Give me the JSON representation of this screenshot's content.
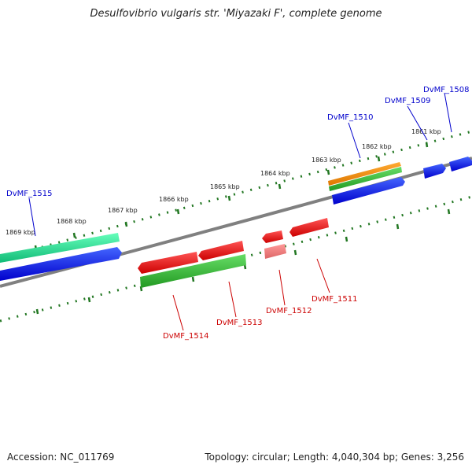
{
  "title": "Desulfovibrio vulgaris str. 'Miyazaki F', complete genome",
  "footer": {
    "accession": "Accession: NC_011769",
    "summary": "Topology: circular; Length: 4,040,304 bp; Genes: 3,256"
  },
  "kbp_labels": [
    "1869 kbp",
    "1868 kbp",
    "1867 kbp",
    "1866 kbp",
    "1865 kbp",
    "1864 kbp",
    "1863 kbp",
    "1862 kbp",
    "1861 kbp"
  ],
  "gene_labels": {
    "forward": [
      "DvMF_1515",
      "DvMF_1510",
      "DvMF_1509",
      "DvMF_1508"
    ],
    "reverse": [
      "DvMF_1514",
      "DvMF_1513",
      "DvMF_1512",
      "DvMF_1511"
    ]
  },
  "colors": {
    "forward_label": "#0000cc",
    "reverse_label": "#cc0000",
    "cds_forward": "#0000ee",
    "cds_reverse": "#ee0000",
    "gene_forward": "#22cc88",
    "gene_reverse": "#33bb33",
    "rna": "#ff8800",
    "ticks": "#227722",
    "backbone": "#808080"
  }
}
